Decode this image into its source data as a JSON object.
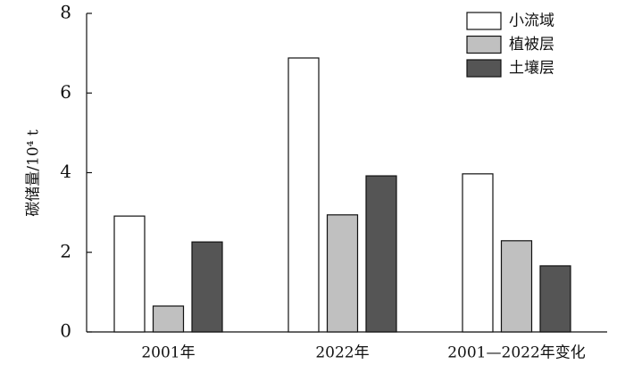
{
  "chart_data": {
    "type": "bar",
    "y_label": "碳储量/10⁴ t",
    "categories": [
      "2001年",
      "2022年",
      "2001—2022年变化"
    ],
    "series": [
      {
        "name": "小流域",
        "color": "#ffffff",
        "values": [
          2.91,
          6.88,
          3.97
        ]
      },
      {
        "name": "植被层",
        "color": "#c0c0c0",
        "values": [
          0.65,
          2.94,
          2.29
        ]
      },
      {
        "name": "土壤层",
        "color": "#555555",
        "values": [
          2.26,
          3.92,
          1.66
        ]
      }
    ],
    "ylim": [
      0,
      8
    ],
    "yticks": [
      0,
      2,
      4,
      6,
      8
    ],
    "legend": "upper right"
  }
}
